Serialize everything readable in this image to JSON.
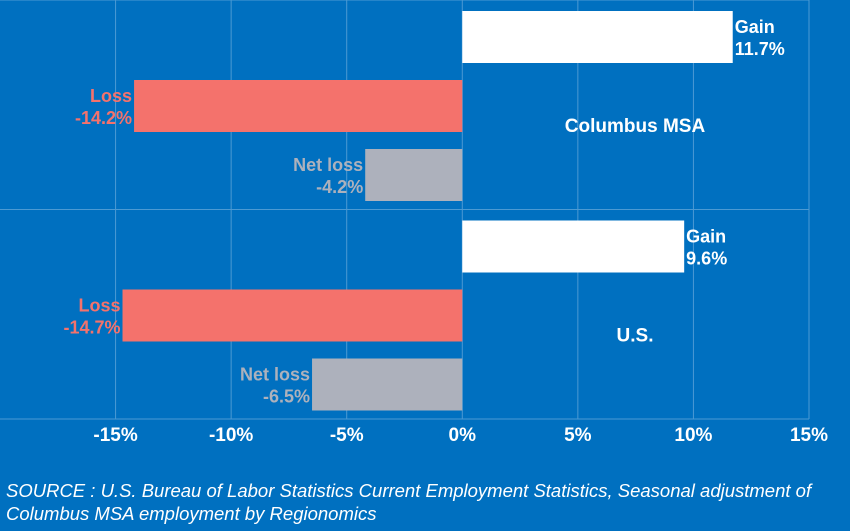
{
  "chart_data": {
    "type": "bar",
    "orientation": "horizontal",
    "xlim": [
      -20,
      15
    ],
    "xticks": [
      -15,
      -10,
      -5,
      0,
      5,
      10,
      15
    ],
    "xtick_labels": [
      "-15%",
      "-10%",
      "-5%",
      "0%",
      "5%",
      "10%",
      "15%"
    ],
    "grid": true,
    "groups": [
      {
        "title": "Columbus MSA",
        "bars": [
          {
            "name": "Gain",
            "value": 11.7,
            "value_label": "11.7%",
            "color": "#ffffff"
          },
          {
            "name": "Loss",
            "value": -14.2,
            "value_label": "-14.2%",
            "color": "#f4726c"
          },
          {
            "name": "Net loss",
            "value": -4.2,
            "value_label": "-4.2%",
            "color": "#adb1bc"
          }
        ]
      },
      {
        "title": "U.S.",
        "bars": [
          {
            "name": "Gain",
            "value": 9.6,
            "value_label": "9.6%",
            "color": "#ffffff"
          },
          {
            "name": "Loss",
            "value": -14.7,
            "value_label": "-14.7%",
            "color": "#f4726c"
          },
          {
            "name": "Net loss",
            "value": -6.5,
            "value_label": "-6.5%",
            "color": "#adb1bc"
          }
        ]
      }
    ]
  },
  "colors": {
    "background": "#0070c0",
    "gridline": "#4c9ad3",
    "gain_label": "#ffffff",
    "loss_label": "#f4726c",
    "net_label": "#adb1bc"
  },
  "source": "SOURCE : U.S. Bureau of Labor Statistics Current Employment Statistics, Seasonal adjustment of Columbus MSA employment by Regionomics"
}
